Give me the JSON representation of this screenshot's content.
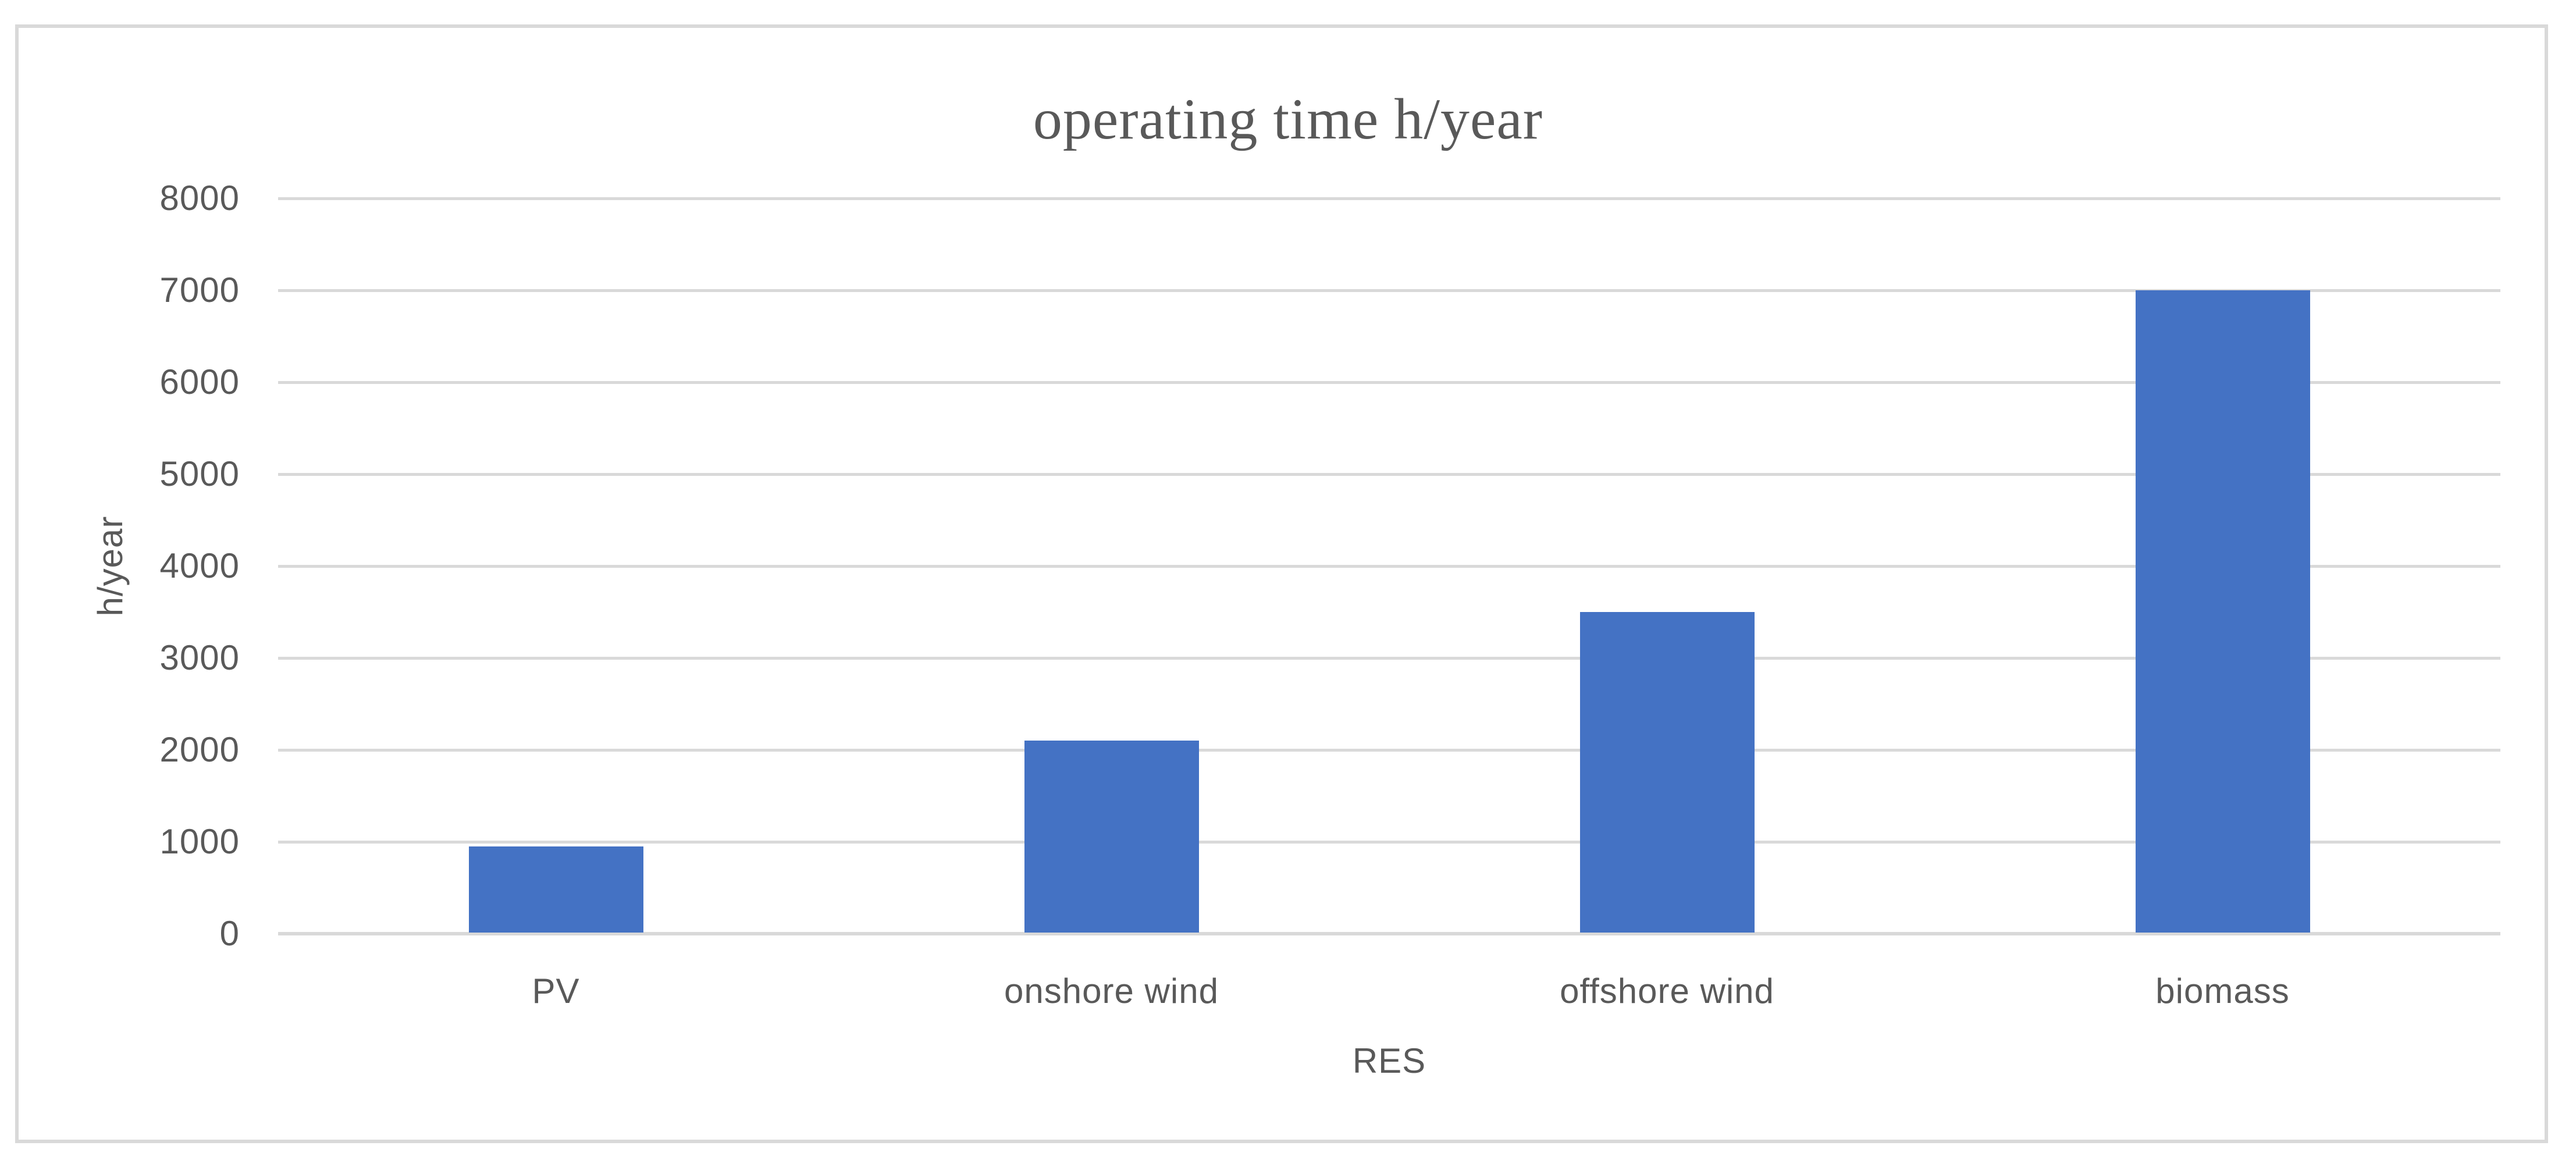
{
  "chart_data": {
    "type": "bar",
    "title": "operating time h/year",
    "xlabel": "RES",
    "ylabel": "h/year",
    "categories": [
      "PV",
      "onshore wind",
      "offshore wind",
      "biomass"
    ],
    "values": [
      950,
      2100,
      3500,
      7000
    ],
    "ylim": [
      0,
      8000
    ],
    "ytick_step": 1000,
    "yticks": [
      0,
      1000,
      2000,
      3000,
      4000,
      5000,
      6000,
      7000,
      8000
    ],
    "grid": "horizontal-gridlines-on",
    "legend_position": "none",
    "colors": {
      "bar_fill": "#4472c4",
      "gridline": "#d9d9d9",
      "axis_line": "#d9d9d9",
      "text": "#595959",
      "frame_border": "#d9d9d9",
      "background": "#ffffff"
    }
  }
}
